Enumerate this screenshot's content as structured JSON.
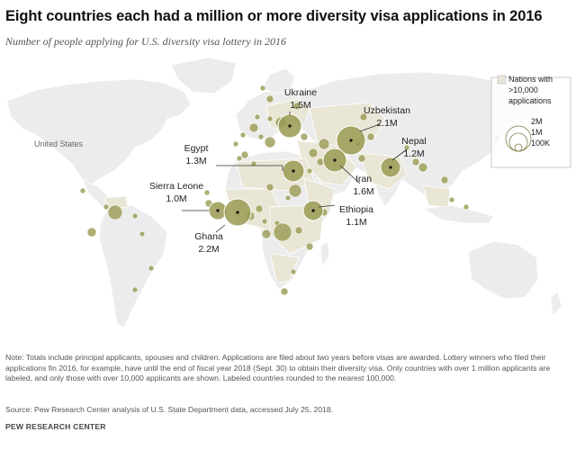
{
  "title": "Eight countries each had a million or more diversity visa applications in 2016",
  "subtitle": "Number of people applying for U.S. diversity visa lottery in 2016",
  "map_label": "United States",
  "legend": {
    "shade_label_lines": [
      "Nations with",
      ">10,000",
      "applications"
    ],
    "size_labels": [
      "2M",
      "1M",
      "100K"
    ],
    "shade_color": "#e9e6d6",
    "bubble_color": "#9a9a52"
  },
  "countries": [
    {
      "name": "Ukraine",
      "value": "1.5M",
      "amount_m": 1.5
    },
    {
      "name": "Uzbekistan",
      "value": "2.1M",
      "amount_m": 2.1
    },
    {
      "name": "Egypt",
      "value": "1.3M",
      "amount_m": 1.3
    },
    {
      "name": "Nepal",
      "value": "1.2M",
      "amount_m": 1.2
    },
    {
      "name": "Iran",
      "value": "1.6M",
      "amount_m": 1.6
    },
    {
      "name": "Sierra Leone",
      "value": "1.0M",
      "amount_m": 1.0
    },
    {
      "name": "Ethiopia",
      "value": "1.1M",
      "amount_m": 1.1
    },
    {
      "name": "Ghana",
      "value": "2.2M",
      "amount_m": 2.2
    }
  ],
  "note": "Note: Totals include principal applicants, spouses and children. Applications are filed about two years before visas are awarded. Lottery winners who filed their applications fin 2016, for example, have until the end of fiscal year 2018 (Sept. 30) to obtain their diversity visa. Only countries with over 1 million applicants are labeled, and only those with over 10,000 applicants are shown. Labeled countries rounded to the nearest 100,000.",
  "source": "Source: Pew Research Center analysis of U.S. State Department data, accessed July 25, 2018.",
  "brand": "PEW RESEARCH CENTER"
}
